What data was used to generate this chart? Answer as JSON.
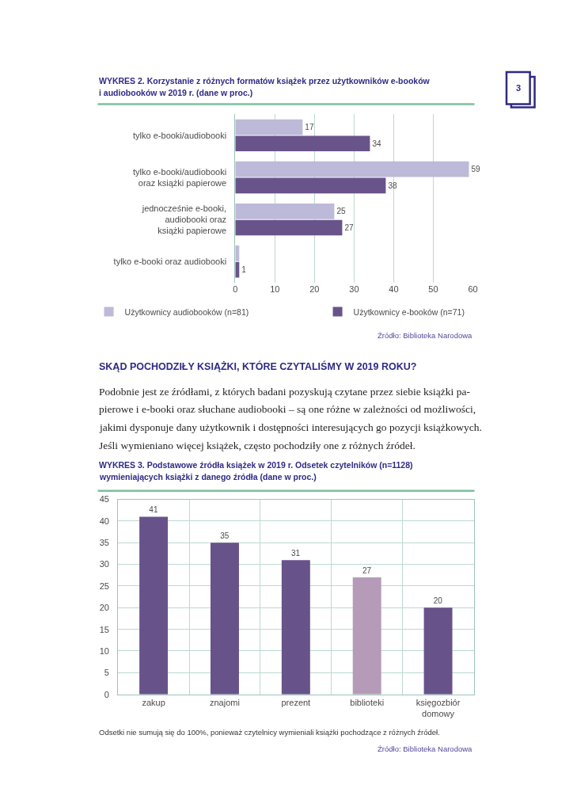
{
  "chart_data": [
    {
      "type": "bar",
      "orientation": "horizontal",
      "title": "WYKRES 2. Korzystanie z różnych formatów książek przez użytkowników e-booków\ni audiobooków w 2019 r. (dane w proc.)",
      "categories": [
        "tylko e-booki/audiobooki",
        "tylko e-booki/audiobooki\noraz książki papierowe",
        "jednocześnie e-booki,\naudiobooki oraz\nksiążki papierowe",
        "tylko e-booki oraz audiobooki"
      ],
      "series": [
        {
          "name": "Użytkownicy audiobooków (n=81)",
          "color": "#bdb9d9",
          "values": [
            17,
            59,
            25,
            1
          ],
          "value_labels": [
            "17",
            "59",
            "25",
            null
          ]
        },
        {
          "name": "Użytkownicy e-booków (n=71)",
          "color": "#68548a",
          "values": [
            34,
            38,
            27,
            1
          ],
          "value_labels": [
            "34",
            "38",
            "27",
            "1"
          ]
        }
      ],
      "xlim": [
        0,
        60
      ],
      "xticks": [
        0,
        10,
        20,
        30,
        40,
        50,
        60
      ],
      "grid": "x",
      "legend": "bottom",
      "annotations": [
        "Źródło: Biblioteka Narodowa",
        "3"
      ]
    },
    {
      "type": "other",
      "title": "SKĄD POCHODZIŁY KSIĄŻKI, KTÓRE CZYTALIŚMY W 2019 ROKU?",
      "annotations": [
        "Podobnie jest ze źródłami, z których badani pozyskują czytane przez siebie książki pa-\npierowe i e-booki oraz słuchane audiobooki – są one różne w zależności od możliwości,\njakimi dysponuje dany użytkownik i dostępności interesujących go pozycji książkowych.\nJeśli wymieniano więcej książek, często pochodziły one z różnych źródeł."
      ]
    },
    {
      "type": "bar",
      "title": "WYKRES 3. Podstawowe źródła książek w 2019 r. Odsetek czytelników (n=1128)\nwymieniających książki z danego źródła (dane w proc.)",
      "categories": [
        "zakup",
        "znajomi",
        "prezent",
        "biblioteki",
        "księgozbiór\ndomowy"
      ],
      "values": [
        41,
        35,
        31,
        27,
        20
      ],
      "colors": [
        "#67538a",
        "#67538a",
        "#67538a",
        "#b59bb8",
        "#67538a"
      ],
      "ylim": [
        0,
        45
      ],
      "yticks": [
        0,
        5,
        10,
        15,
        20,
        25,
        30,
        35,
        40,
        45
      ],
      "grid": true,
      "data_labels": true,
      "annotations": [
        "Odsetki nie sumują się do 100%, ponieważ czytelnicy wymieniali książki pochodzące z różnych źródeł.",
        "Źródło: Biblioteka Narodowa"
      ]
    }
  ]
}
